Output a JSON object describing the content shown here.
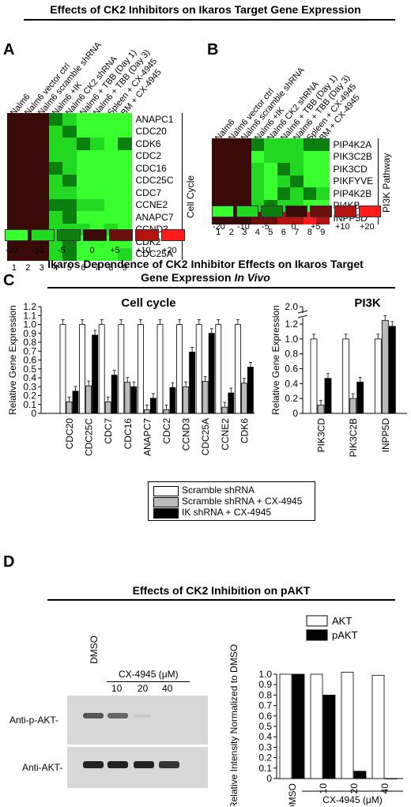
{
  "main_title": "Effects of CK2 Inhibitors on Ikaros Target Gene Expression",
  "panel_labels": {
    "a": "A",
    "b": "B",
    "c": "C",
    "d": "D"
  },
  "heatmap_a": {
    "columns": [
      "Nalm6",
      "Nalm6 vector ctrl",
      "Nalm6 scramble shRNA",
      "Nalm6 +IK",
      "Nalm6 CK2 shRNA",
      "Nalm6 + TBB (Day 1)",
      "Nalm6 + TBB (Day 3)",
      "Spleen + CX-4945",
      "BM + CX-4945"
    ],
    "column_numbers": [
      "1",
      "2",
      "3",
      "4",
      "5",
      "6",
      "7",
      "8",
      "9"
    ],
    "genes": [
      "ANAPC1",
      "CDC20",
      "CDK6",
      "CDC2",
      "CDC16",
      "CDC25C",
      "CDC7",
      "CCNE2",
      "ANAPC7",
      "CCND3",
      "CDK2",
      "CDC25A"
    ],
    "group_label": "Cell Cycle",
    "values": [
      [
        0,
        0,
        0,
        -5,
        -10,
        -20,
        -20,
        -20,
        -20
      ],
      [
        0,
        0,
        0,
        -10,
        -5,
        -20,
        -20,
        -20,
        -20
      ],
      [
        0,
        0,
        0,
        -10,
        -10,
        -5,
        -10,
        -20,
        -5
      ],
      [
        0,
        0,
        0,
        -10,
        -10,
        -20,
        -20,
        -20,
        -20
      ],
      [
        0,
        0,
        0,
        -5,
        -10,
        -20,
        -20,
        -20,
        -20
      ],
      [
        0,
        0,
        0,
        -10,
        -5,
        -20,
        -20,
        -20,
        -20
      ],
      [
        0,
        0,
        0,
        -10,
        -10,
        -20,
        -20,
        -20,
        -20
      ],
      [
        0,
        0,
        0,
        -5,
        -5,
        -10,
        -10,
        -20,
        -20
      ],
      [
        0,
        0,
        0,
        -10,
        -5,
        -20,
        -20,
        -20,
        -20
      ],
      [
        0,
        0,
        0,
        -10,
        -10,
        -10,
        -20,
        -10,
        -20
      ],
      [
        0,
        0,
        0,
        -10,
        -5,
        -20,
        -20,
        -20,
        -20
      ],
      [
        0,
        0,
        0,
        -10,
        -5,
        -20,
        -20,
        -20,
        -10
      ]
    ],
    "legend_labels": [
      "-20",
      "-10",
      "-5",
      "0",
      "+5",
      "+10",
      "+20"
    ]
  },
  "heatmap_b": {
    "columns": [
      "Nalm6",
      "Nalm6 vector ctrl",
      "Nalm6 scramble shRNA",
      "Nalm6 +IK",
      "Nalm6 CK2 shRNA",
      "Nalm6 + TBB (Day 1)",
      "Nalm6 + TBB (Day 3)",
      "Spleen + CX-4945",
      "BM + CX-4945"
    ],
    "column_numbers": [
      "1",
      "2",
      "3",
      "4",
      "5",
      "6",
      "7",
      "8",
      "9"
    ],
    "genes": [
      "PIP4K2A",
      "PIK3C2B",
      "PIK3CD",
      "PIKFYVE",
      "PIP4K2B",
      "PI4KB",
      "INPP5D"
    ],
    "group_label": "PI3K Pathway",
    "values": [
      [
        0,
        0,
        0,
        -5,
        -10,
        -10,
        -10,
        -5,
        -5
      ],
      [
        0,
        0,
        0,
        -20,
        -10,
        -10,
        -10,
        -20,
        -20
      ],
      [
        0,
        0,
        0,
        -10,
        -20,
        -5,
        -10,
        -20,
        -20
      ],
      [
        0,
        0,
        0,
        -10,
        -20,
        -10,
        -5,
        -20,
        -20
      ],
      [
        0,
        0,
        0,
        -10,
        -20,
        -5,
        -10,
        -5,
        -10
      ],
      [
        0,
        0,
        0,
        -10,
        -5,
        -10,
        -10,
        -20,
        -20
      ],
      [
        0,
        0,
        0,
        5,
        5,
        10,
        10,
        20,
        10
      ]
    ],
    "legend_labels": [
      "-20",
      "-10",
      "-5",
      "0",
      "+5",
      "+10",
      "+20"
    ]
  },
  "heat_colors": {
    "-20": "#39ff2e",
    "-10": "#22d820",
    "-5": "#0b7f10",
    "0": "#3a0a08",
    "5": "#6b0f0c",
    "10": "#b3120f",
    "20": "#ff1a1a"
  },
  "section_c_title_line1": "Ikaros Dependence of CK2 Inhibitor Effects on Ikaros Target",
  "section_c_title_line2": "Gene Expression",
  "section_c_title_italic": "In Vivo",
  "section_d_title": "Effects of CK2 Inhibition on pAKT",
  "blot": {
    "lanes": [
      "DMSO",
      "10",
      "20",
      "40"
    ],
    "treatment": "CX-4945 (μM)",
    "rows": [
      "Anti-p-AKT-",
      "Anti-AKT-"
    ]
  },
  "chart_data": [
    {
      "type": "bar",
      "title": "Cell cycle",
      "ylabel": "Relative Gene Expression",
      "ylim": [
        0,
        1.2
      ],
      "yticks": [
        "0",
        "0.1",
        "0.2",
        "0.3",
        "0.4",
        "0.5",
        "0.6",
        "0.7",
        "0.8",
        "0.9",
        "1.0",
        "1.1",
        "1.2"
      ],
      "categories": [
        "CDC20",
        "CDC25C",
        "CDC7",
        "CDC16",
        "ANAPC7",
        "CDC2",
        "CCND3",
        "CDC25A",
        "CCNE2",
        "CDK6"
      ],
      "series": [
        {
          "name": "Scramble shRNA",
          "color": "#ffffff",
          "values": [
            1.0,
            1.0,
            1.0,
            1.0,
            1.0,
            1.0,
            1.0,
            1.0,
            1.0,
            1.0
          ]
        },
        {
          "name": "Scramble shRNA + CX-4945",
          "color": "#bbbbbb",
          "values": [
            0.13,
            0.31,
            0.13,
            0.35,
            0.04,
            0.04,
            0.3,
            0.36,
            0.07,
            0.34
          ]
        },
        {
          "name": "IK shRNA + CX-4945",
          "color": "#000000",
          "values": [
            0.25,
            0.88,
            0.43,
            0.3,
            0.17,
            0.29,
            0.69,
            0.9,
            0.23,
            0.52
          ]
        }
      ]
    },
    {
      "type": "bar",
      "title": "PI3K",
      "ylabel": "Relative Gene Expression",
      "ylim": [
        0,
        2.0
      ],
      "yticks": [
        "0",
        "0.2",
        "0.4",
        "0.6",
        "0.8",
        "1.0",
        "1.2",
        "2.0"
      ],
      "axis_break": true,
      "categories": [
        "PIK3CD",
        "PIK3C2B",
        "INPP5D"
      ],
      "series": [
        {
          "name": "Scramble shRNA",
          "color": "#ffffff",
          "values": [
            1.0,
            1.0,
            1.0
          ]
        },
        {
          "name": "Scramble shRNA + CX-4945",
          "color": "#bbbbbb",
          "values": [
            0.11,
            0.2,
            1.25
          ]
        },
        {
          "name": "IK shRNA + CX-4945",
          "color": "#000000",
          "values": [
            0.47,
            0.42,
            1.17
          ]
        }
      ]
    },
    {
      "type": "bar",
      "ylabel": "Relative Intensity Normalized to DMSO",
      "ylim": [
        0,
        1.0
      ],
      "yticks": [
        "0",
        "0.1",
        "0.2",
        "0.3",
        "0.4",
        "0.5",
        "0.6",
        "0.7",
        "0.8",
        "0.9",
        "1.0"
      ],
      "categories": [
        "DMSO",
        "10",
        "20",
        "40"
      ],
      "xlabel": "CX-4945 (μM)",
      "series": [
        {
          "name": "AKT",
          "color": "#ffffff",
          "values": [
            1.0,
            1.0,
            1.02,
            0.99
          ]
        },
        {
          "name": "pAKT",
          "color": "#000000",
          "values": [
            1.0,
            0.8,
            0.07,
            0.0
          ]
        }
      ]
    }
  ]
}
